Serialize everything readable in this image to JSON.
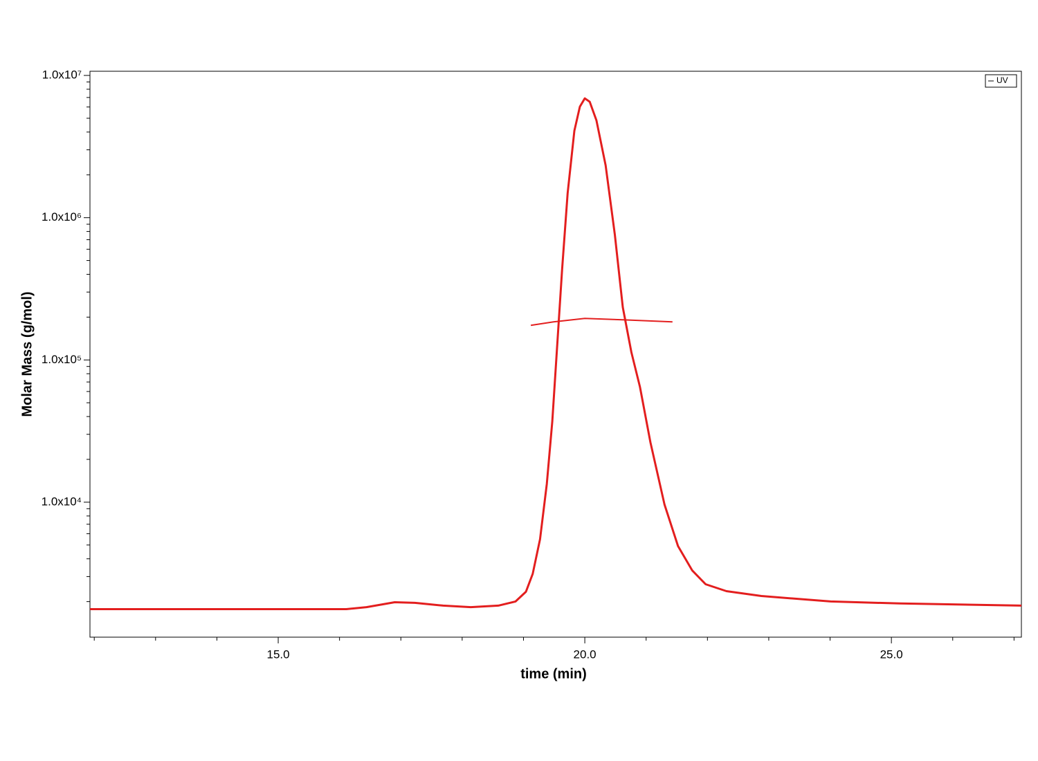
{
  "chart_data": {
    "type": "line",
    "xlabel": "time (min)",
    "ylabel": "Molar Mass (g/mol)",
    "xlim": [
      11.93,
      27.12
    ],
    "xticks": [
      {
        "value": 15,
        "label": "15.0"
      },
      {
        "value": 20,
        "label": "20.0"
      },
      {
        "value": 25,
        "label": "25.0"
      }
    ],
    "xminorticks": [
      12,
      13,
      14,
      16,
      17,
      18,
      19,
      21,
      22,
      23,
      24,
      26,
      27
    ],
    "ylim": [
      1125,
      10700000
    ],
    "log_y": true,
    "yticks": [
      {
        "value": 10000,
        "label": "1.0x10⁴"
      },
      {
        "value": 100000,
        "label": "1.0x10⁵"
      },
      {
        "value": 1000000,
        "label": "1.0x10⁶"
      },
      {
        "value": 10000000,
        "label": "1.0x10⁷"
      }
    ],
    "yminorticks": [
      2000,
      3000,
      4000,
      5000,
      6000,
      7000,
      8000,
      9000,
      20000,
      30000,
      40000,
      50000,
      60000,
      70000,
      80000,
      90000,
      200000,
      300000,
      400000,
      500000,
      600000,
      700000,
      800000,
      900000,
      2000000,
      3000000,
      4000000,
      5000000,
      6000000,
      7000000,
      8000000,
      9000000
    ],
    "legend": "upper right",
    "series": [
      {
        "name": "UV",
        "color": "#e31e1e",
        "x": [
          11.93,
          16.11,
          16.44,
          16.9,
          17.23,
          17.69,
          18.14,
          18.59,
          18.87,
          19.04,
          19.15,
          19.27,
          19.38,
          19.47,
          19.55,
          19.63,
          19.72,
          19.83,
          19.92,
          20.0,
          20.08,
          20.19,
          20.34,
          20.49,
          20.62,
          20.76,
          20.9,
          21.07,
          21.3,
          21.52,
          21.75,
          21.97,
          22.31,
          22.88,
          24.01,
          25.14,
          27.12
        ],
        "values": [
          1770,
          1770,
          1830,
          1980,
          1960,
          1875,
          1830,
          1875,
          2005,
          2345,
          3135,
          5490,
          13460,
          36900,
          126500,
          433700,
          1490000,
          4080000,
          6040000,
          6900000,
          6530000,
          4830000,
          2330000,
          760000,
          234400,
          113200,
          64600,
          26360,
          9620,
          4910,
          3320,
          2650,
          2370,
          2190,
          2005,
          1940,
          1875
        ]
      },
      {
        "color": "#e31e1e",
        "x": [
          19.12,
          19.49,
          20.0,
          20.62,
          21.43
        ],
        "values": [
          175000,
          185300,
          196000,
          191500,
          185300
        ]
      }
    ]
  }
}
